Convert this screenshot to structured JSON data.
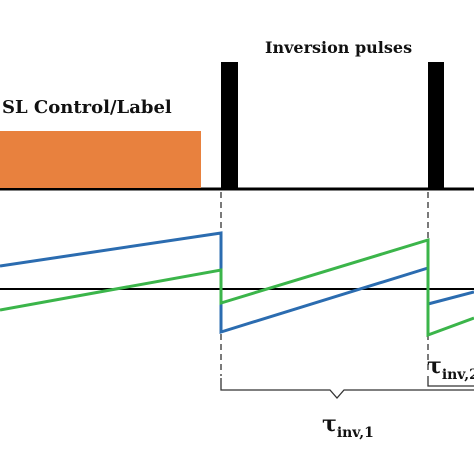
{
  "diagram": {
    "labels": {
      "control_label": "SL Control/Label",
      "inversion_pulses": "Inversion pulses",
      "tau_inv_1": {
        "main": "τ",
        "subscript": "inv,1"
      },
      "tau_inv_2": {
        "main": "τ",
        "subscript": "inv,2"
      }
    },
    "colors": {
      "control_block": "#e8813e",
      "pulse": "#000000",
      "blue_trace": "#2b6cb0",
      "green_trace": "#3bb54a",
      "baseline": "#000000",
      "guide_dash": "#333333",
      "brace": "#333333"
    }
  }
}
